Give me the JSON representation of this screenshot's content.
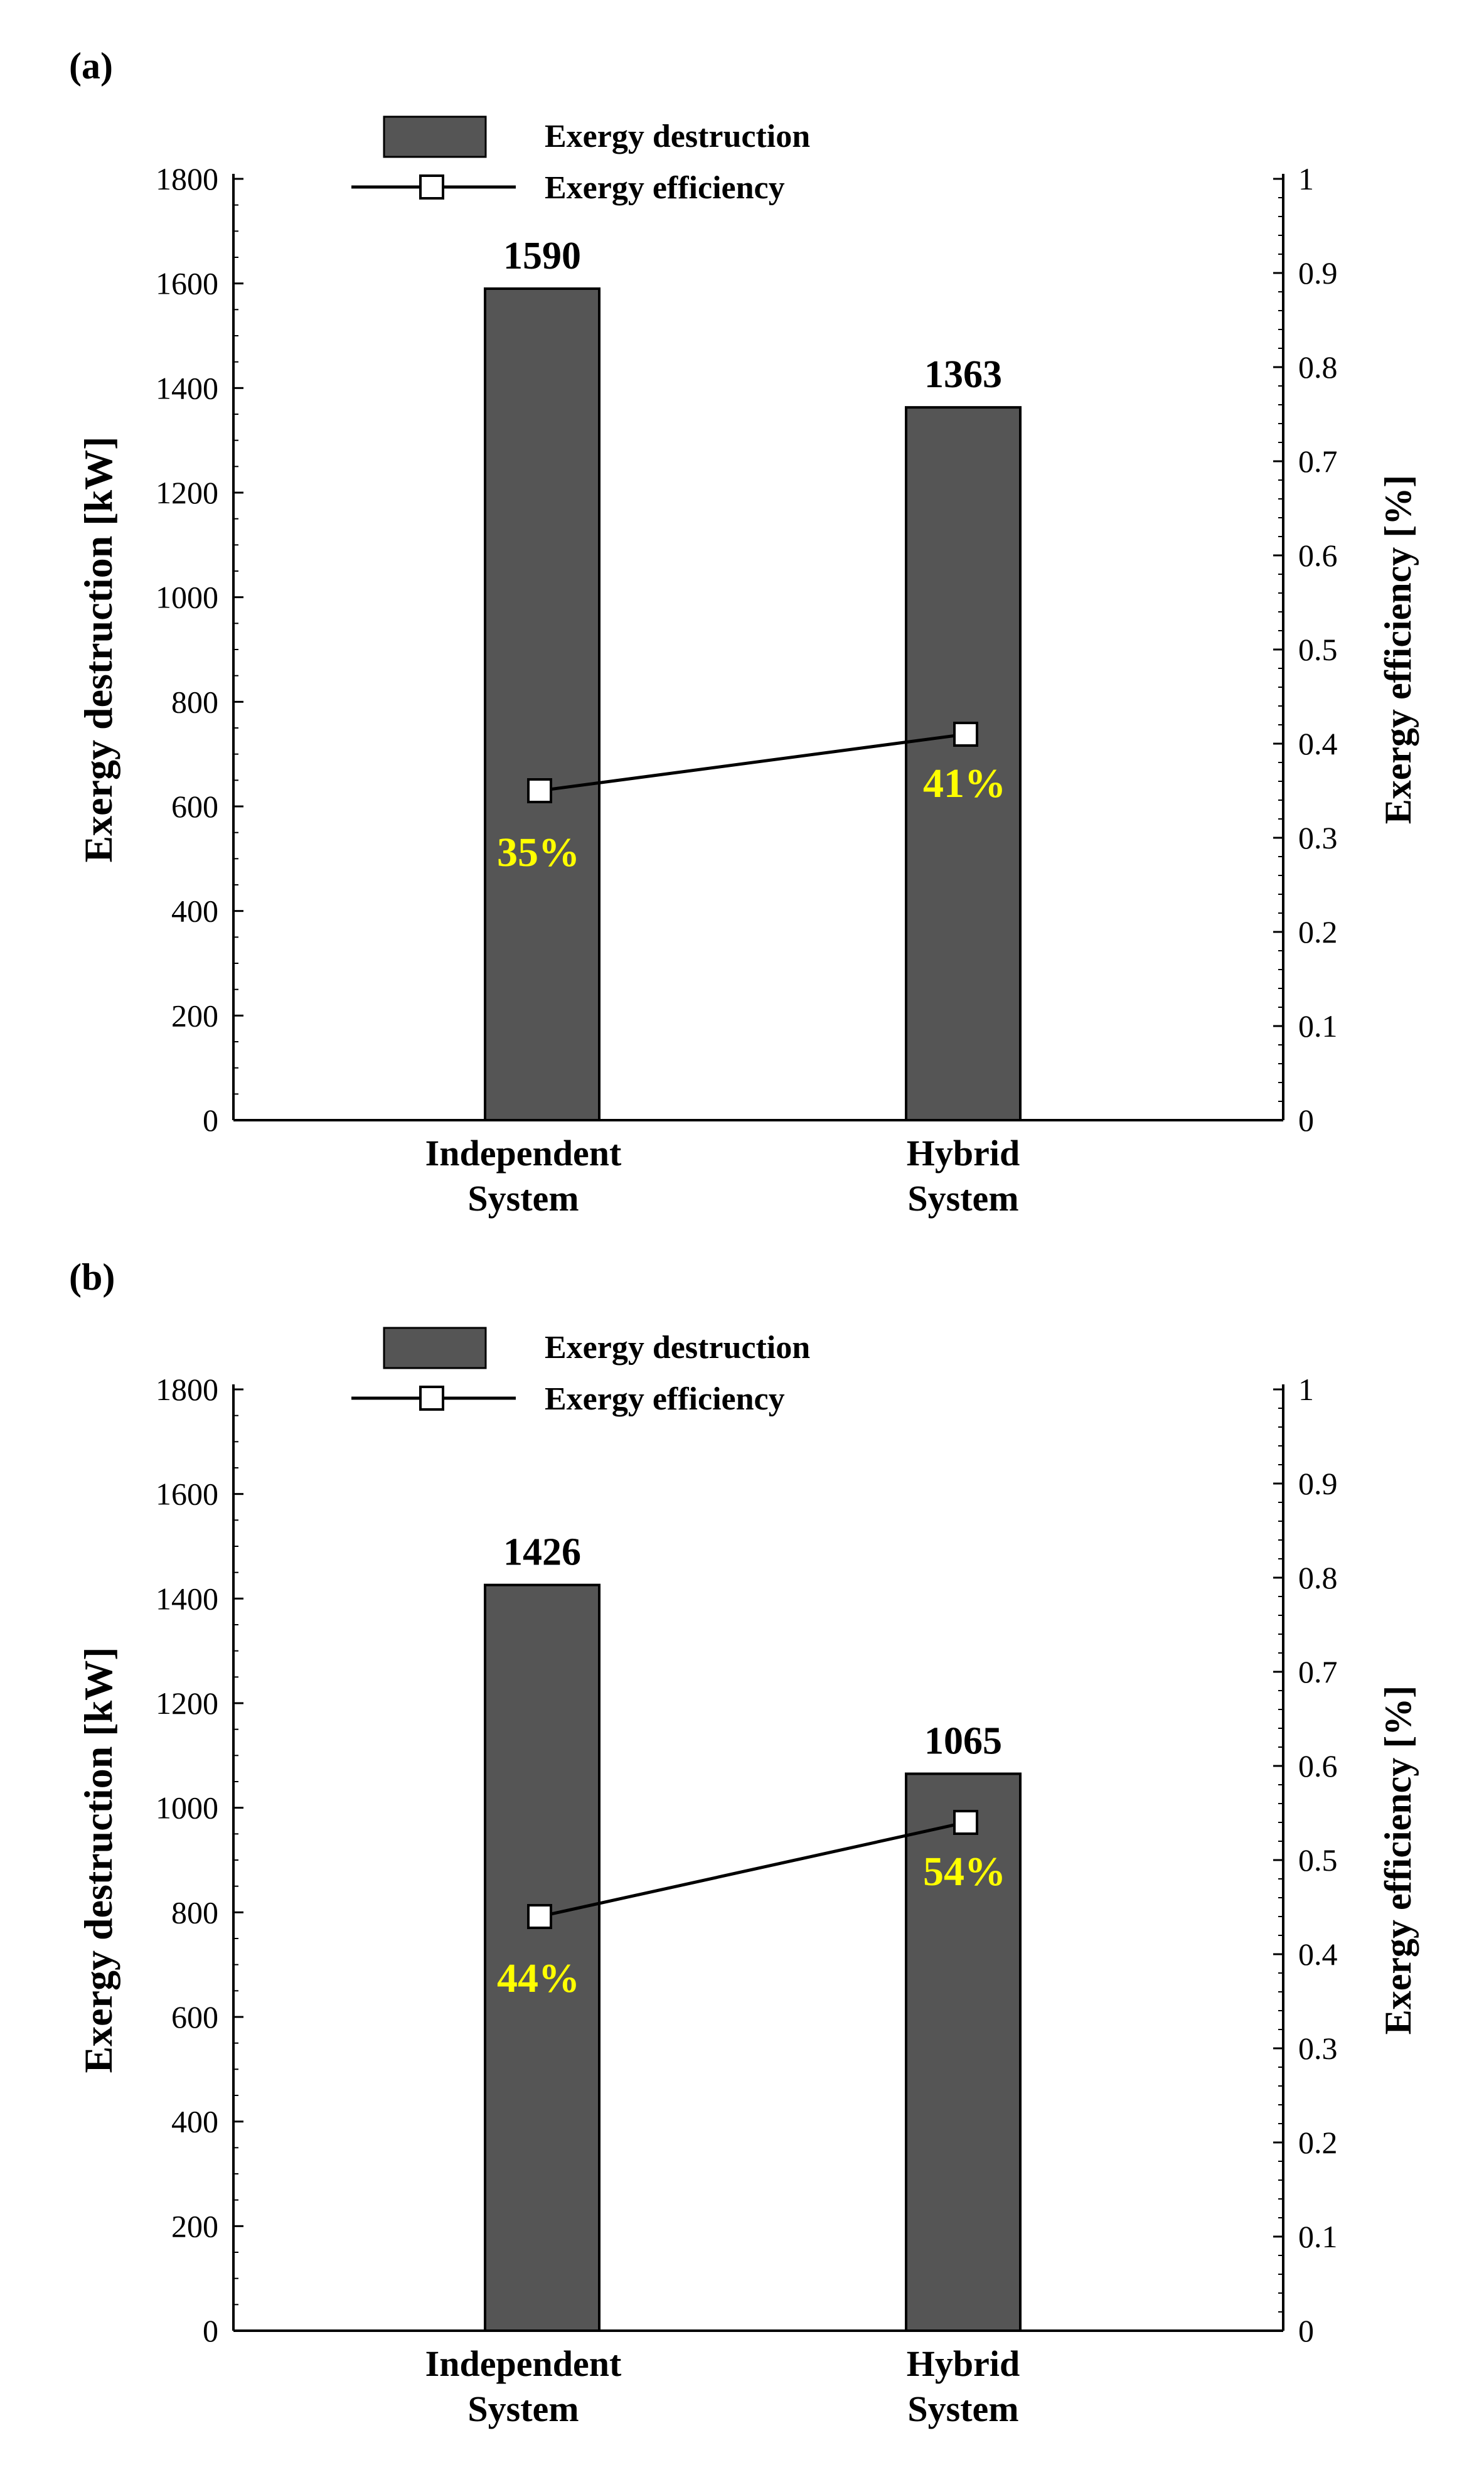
{
  "colors": {
    "bar": "#555555",
    "bar_edge": "#000000",
    "line": "#000000",
    "marker_fill": "#ffffff",
    "eff_label": "#ffff00",
    "axis": "#000000"
  },
  "chart_data": [
    {
      "type": "bar",
      "panel_label": "(a)",
      "categories": [
        [
          "Independent",
          "System"
        ],
        [
          "Hybrid",
          "System"
        ]
      ],
      "series": [
        {
          "name": "Exergy destruction",
          "axis": "left",
          "values": [
            1590,
            1363
          ],
          "value_labels": [
            "1590",
            "1363"
          ]
        },
        {
          "name": "Exergy efficiency",
          "axis": "right",
          "type": "line",
          "values": [
            0.35,
            0.41
          ],
          "value_labels": [
            "35%",
            "41%"
          ]
        }
      ],
      "ylabel_left": "Exergy destruction [kW]",
      "ylabel_right": "Exergy efficiency [%]",
      "ylim_left": [
        0,
        1800
      ],
      "ylim_right": [
        0,
        1
      ],
      "yticks_left": [
        "0",
        "200",
        "400",
        "600",
        "800",
        "1000",
        "1200",
        "1400",
        "1600",
        "1800"
      ],
      "yticks_right": [
        "0",
        "0.1",
        "0.2",
        "0.3",
        "0.4",
        "0.5",
        "0.6",
        "0.7",
        "0.8",
        "0.9",
        "1"
      ],
      "legend": [
        "Exergy destruction",
        "Exergy efficiency"
      ],
      "legend_position": "top-center",
      "grid": false
    },
    {
      "type": "bar",
      "panel_label": "(b)",
      "categories": [
        [
          "Independent",
          "System"
        ],
        [
          "Hybrid",
          "System"
        ]
      ],
      "series": [
        {
          "name": "Exergy destruction",
          "axis": "left",
          "values": [
            1426,
            1065
          ],
          "value_labels": [
            "1426",
            "1065"
          ]
        },
        {
          "name": "Exergy efficiency",
          "axis": "right",
          "type": "line",
          "values": [
            0.44,
            0.54
          ],
          "value_labels": [
            "44%",
            "54%"
          ]
        }
      ],
      "ylabel_left": "Exergy destruction [kW]",
      "ylabel_right": "Exergy efficiency [%]",
      "ylim_left": [
        0,
        1800
      ],
      "ylim_right": [
        0,
        1
      ],
      "yticks_left": [
        "0",
        "200",
        "400",
        "600",
        "800",
        "1000",
        "1200",
        "1400",
        "1600",
        "1800"
      ],
      "yticks_right": [
        "0",
        "0.1",
        "0.2",
        "0.3",
        "0.4",
        "0.5",
        "0.6",
        "0.7",
        "0.8",
        "0.9",
        "1"
      ],
      "legend": [
        "Exergy destruction",
        "Exergy efficiency"
      ],
      "legend_position": "top-center",
      "grid": false
    }
  ]
}
